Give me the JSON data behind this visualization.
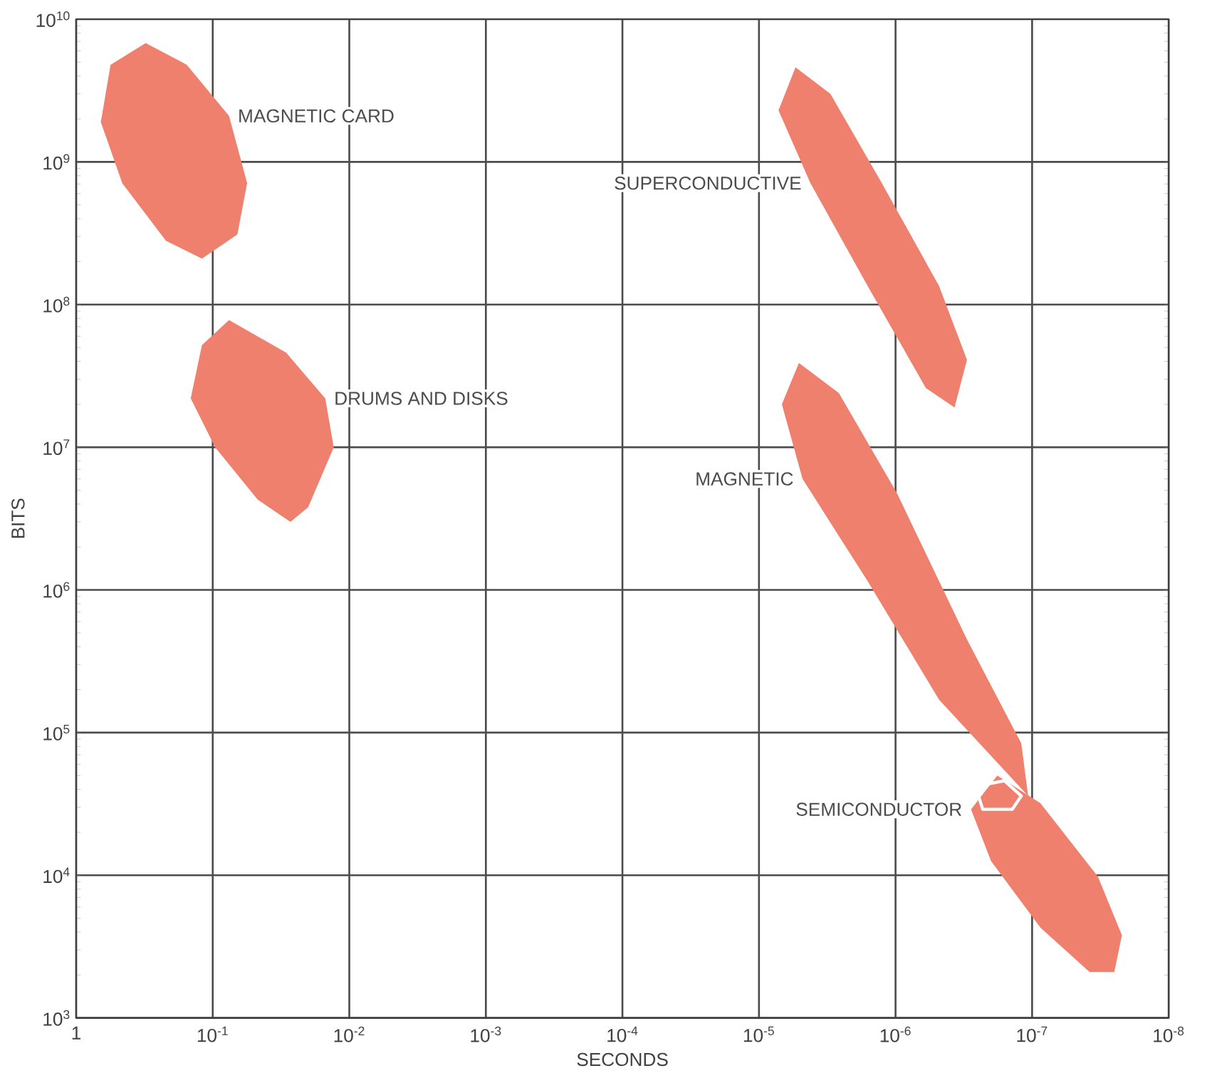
{
  "chart_data": {
    "type": "area",
    "xlabel": "SECONDS",
    "ylabel": "BITS",
    "log": "xy",
    "grid": true,
    "xlim": [
      1,
      1e-08
    ],
    "ylim": [
      1000,
      10000000000.0
    ],
    "xticks": [
      1,
      {
        "value": 0.1,
        "label": "10$^{-1}$"
      },
      {
        "value": 0.01,
        "label": "10$^{-2}$"
      },
      {
        "value": 0.001,
        "label": "10$^{-3}$"
      },
      {
        "value": 0.0001,
        "label": "10$^{-4}$"
      },
      {
        "value": 1e-05,
        "label": "10$^{-5}$"
      },
      {
        "value": 1e-06,
        "label": "10$^{-6}$"
      },
      {
        "value": 1e-07,
        "label": "10$^{-7}$"
      },
      {
        "value": 1e-08,
        "label": "10$^{-8}$"
      }
    ],
    "yticks": [
      {
        "value": 1000,
        "label": "10$^{3}$"
      },
      {
        "value": 10000,
        "label": "10$^{4}$"
      },
      {
        "value": 100000,
        "label": "10$^{5}$"
      },
      {
        "value": 1000000,
        "label": "10$^{6}$"
      },
      {
        "value": 10000000,
        "label": "10$^{7}$"
      },
      {
        "value": 100000000,
        "label": "10$^{8}$"
      },
      {
        "value": 1000000000,
        "label": "10$^{9}$"
      },
      {
        "value": 10000000000,
        "label": "10$^{10}$"
      }
    ],
    "series": [
      {
        "name": "MAGNETIC CARD",
        "color": "#f0806e",
        "x": [
          0.31,
          0.155,
          0.076,
          0.056,
          0.066,
          0.12,
          0.22,
          0.46,
          0.66,
          0.56
        ],
        "values": [
          6800000000.0,
          4800000000.0,
          2100000000.0,
          710000000.0,
          310000000.0,
          210000000.0,
          280000000.0,
          710000000.0,
          1900000000.0,
          4800000000.0
        ]
      },
      {
        "name": "DRUMS AND DISKS",
        "color": "#f0806e",
        "x": [
          0.076,
          0.029,
          0.015,
          0.013,
          0.02,
          0.027,
          0.047,
          0.096,
          0.145,
          0.12
        ],
        "values": [
          78000000.0,
          46000000.0,
          22000000.0,
          10000000.0,
          3800000.0,
          3000000.0,
          4300000.0,
          10000000.0,
          22000000.0,
          52000000.0
        ]
      },
      {
        "name": "SUPERCONDUCTIVE",
        "color": "#f0806e",
        "x": [
          5.4e-06,
          3e-06,
          1.26e-06,
          4.8e-07,
          3e-07,
          3.7e-07,
          6e-07,
          1.6e-06,
          4.2e-06,
          7.2e-06
        ],
        "values": [
          4600000000.0,
          3000000000.0,
          710000000.0,
          135000000.0,
          41000000.0,
          19000000.0,
          26000000.0,
          135000000.0,
          710000000.0,
          2300000000.0
        ]
      },
      {
        "name": "MAGNETIC",
        "color": "#f0806e",
        "x": [
          5.1e-06,
          2.6e-06,
          9.8e-07,
          3e-07,
          1.2e-07,
          1.07e-07,
          4.8e-07,
          1.6e-06,
          4.8e-06,
          6.8e-06
        ],
        "values": [
          39000000.0,
          24000000.0,
          4800000.0,
          450000.0,
          84000.0,
          36000.0,
          170000.0,
          1150000.0,
          6000000.0,
          20000000.0
        ]
      },
      {
        "name": "SEMICONDUCTOR",
        "color": "#f0806e",
        "x": [
          1.8e-07,
          8.7e-08,
          3.3e-08,
          2.2e-08,
          2.5e-08,
          3.8e-08,
          8.7e-08,
          2e-07,
          2.8e-07
        ],
        "values": [
          50000.0,
          32000.0,
          9800.0,
          3800.0,
          2100.0,
          2100.0,
          4300.0,
          12600.0,
          29000.0
        ]
      },
      {
        "type": "line",
        "color": "#ffffff",
        "x": [
          2.6e-07,
          1.6e-07,
          1.2e-07
        ],
        "values": [
          42000.0,
          46000.0,
          36000.0
        ]
      },
      {
        "type": "line",
        "color": "#ffffff",
        "x": [
          2.6e-07,
          2.3e-07,
          1.4e-07,
          1.2e-07
        ],
        "values": [
          42000.0,
          29000.0,
          29000.0,
          36000.0
        ]
      }
    ]
  }
}
